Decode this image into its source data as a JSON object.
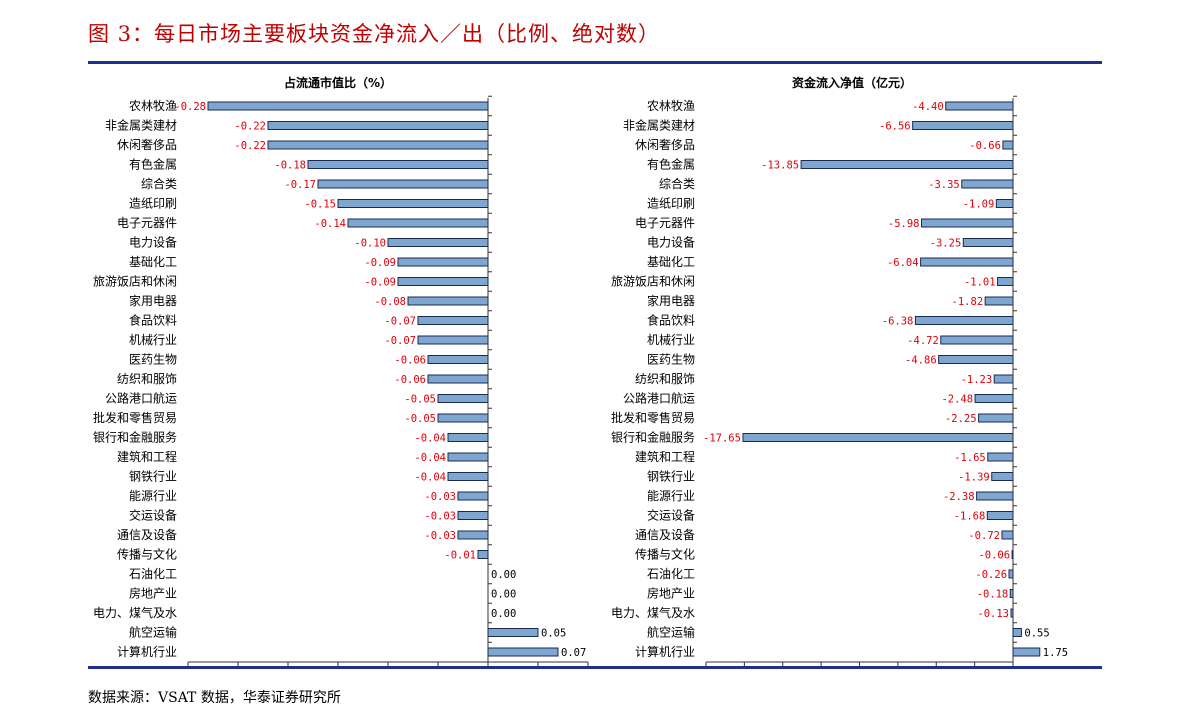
{
  "figure": {
    "title": "图 3：每日市场主要板块资金净流入／出（比例、绝对数）",
    "source": "数据来源：VSAT 数据，华泰证券研究所"
  },
  "colors": {
    "bar_fill": "#7fa6cf",
    "bar_stroke": "#1a2a55",
    "negative_label": "#e0000b",
    "positive_label": "#000000",
    "title_red": "#c00000",
    "rule_blue": "#1f2f8f"
  },
  "chart_data": [
    {
      "type": "bar",
      "orientation": "horizontal",
      "title": "占流通市值比（%）",
      "xlim": [
        -0.28,
        0.07
      ],
      "categories": [
        "农林牧渔",
        "非金属类建材",
        "休闲奢侈品",
        "有色金属",
        "综合类",
        "造纸印刷",
        "电子元器件",
        "电力设备",
        "基础化工",
        "旅游饭店和休闲",
        "家用电器",
        "食品饮料",
        "机械行业",
        "医药生物",
        "纺织和服饰",
        "公路港口航运",
        "批发和零售贸易",
        "银行和金融服务",
        "建筑和工程",
        "钢铁行业",
        "能源行业",
        "交运设备",
        "通信及设备",
        "传播与文化",
        "石油化工",
        "房地产业",
        "电力、煤气及水",
        "航空运输",
        "计算机行业"
      ],
      "values": [
        -0.28,
        -0.22,
        -0.22,
        -0.18,
        -0.17,
        -0.15,
        -0.14,
        -0.1,
        -0.09,
        -0.09,
        -0.08,
        -0.07,
        -0.07,
        -0.06,
        -0.06,
        -0.05,
        -0.05,
        -0.04,
        -0.04,
        -0.04,
        -0.03,
        -0.03,
        -0.03,
        -0.01,
        0.0,
        0.0,
        0.0,
        0.05,
        0.07
      ],
      "value_labels": [
        "-0.28",
        "-0.22",
        "-0.22",
        "-0.18",
        "-0.17",
        "-0.15",
        "-0.14",
        "-0.10",
        "-0.09",
        "-0.09",
        "-0.08",
        "-0.07",
        "-0.07",
        "-0.06",
        "-0.06",
        "-0.05",
        "-0.05",
        "-0.04",
        "-0.04",
        "-0.04",
        "-0.03",
        "-0.03",
        "-0.03",
        "-0.01",
        "0.00",
        "0.00",
        "0.00",
        "0.05",
        "0.07"
      ]
    },
    {
      "type": "bar",
      "orientation": "horizontal",
      "title": "资金流入净值（亿元）",
      "xlim": [
        -17.65,
        1.75
      ],
      "categories": [
        "农林牧渔",
        "非金属类建材",
        "休闲奢侈品",
        "有色金属",
        "综合类",
        "造纸印刷",
        "电子元器件",
        "电力设备",
        "基础化工",
        "旅游饭店和休闲",
        "家用电器",
        "食品饮料",
        "机械行业",
        "医药生物",
        "纺织和服饰",
        "公路港口航运",
        "批发和零售贸易",
        "银行和金融服务",
        "建筑和工程",
        "钢铁行业",
        "能源行业",
        "交运设备",
        "通信及设备",
        "传播与文化",
        "石油化工",
        "房地产业",
        "电力、煤气及水",
        "航空运输",
        "计算机行业"
      ],
      "values": [
        -4.4,
        -6.56,
        -0.66,
        -13.85,
        -3.35,
        -1.09,
        -5.98,
        -3.25,
        -6.04,
        -1.01,
        -1.82,
        -6.38,
        -4.72,
        -4.86,
        -1.23,
        -2.48,
        -2.25,
        -17.65,
        -1.65,
        -1.39,
        -2.38,
        -1.68,
        -0.72,
        -0.06,
        -0.26,
        -0.18,
        -0.13,
        0.55,
        1.75
      ],
      "value_labels": [
        "-4.40",
        "-6.56",
        "-0.66",
        "-13.85",
        "-3.35",
        "-1.09",
        "-5.98",
        "-3.25",
        "-6.04",
        "-1.01",
        "-1.82",
        "-6.38",
        "-4.72",
        "-4.86",
        "-1.23",
        "-2.48",
        "-2.25",
        "-17.65",
        "-1.65",
        "-1.39",
        "-2.38",
        "-1.68",
        "-0.72",
        "-0.06",
        "-0.26",
        "-0.18",
        "-0.13",
        "0.55",
        "1.75"
      ]
    }
  ]
}
